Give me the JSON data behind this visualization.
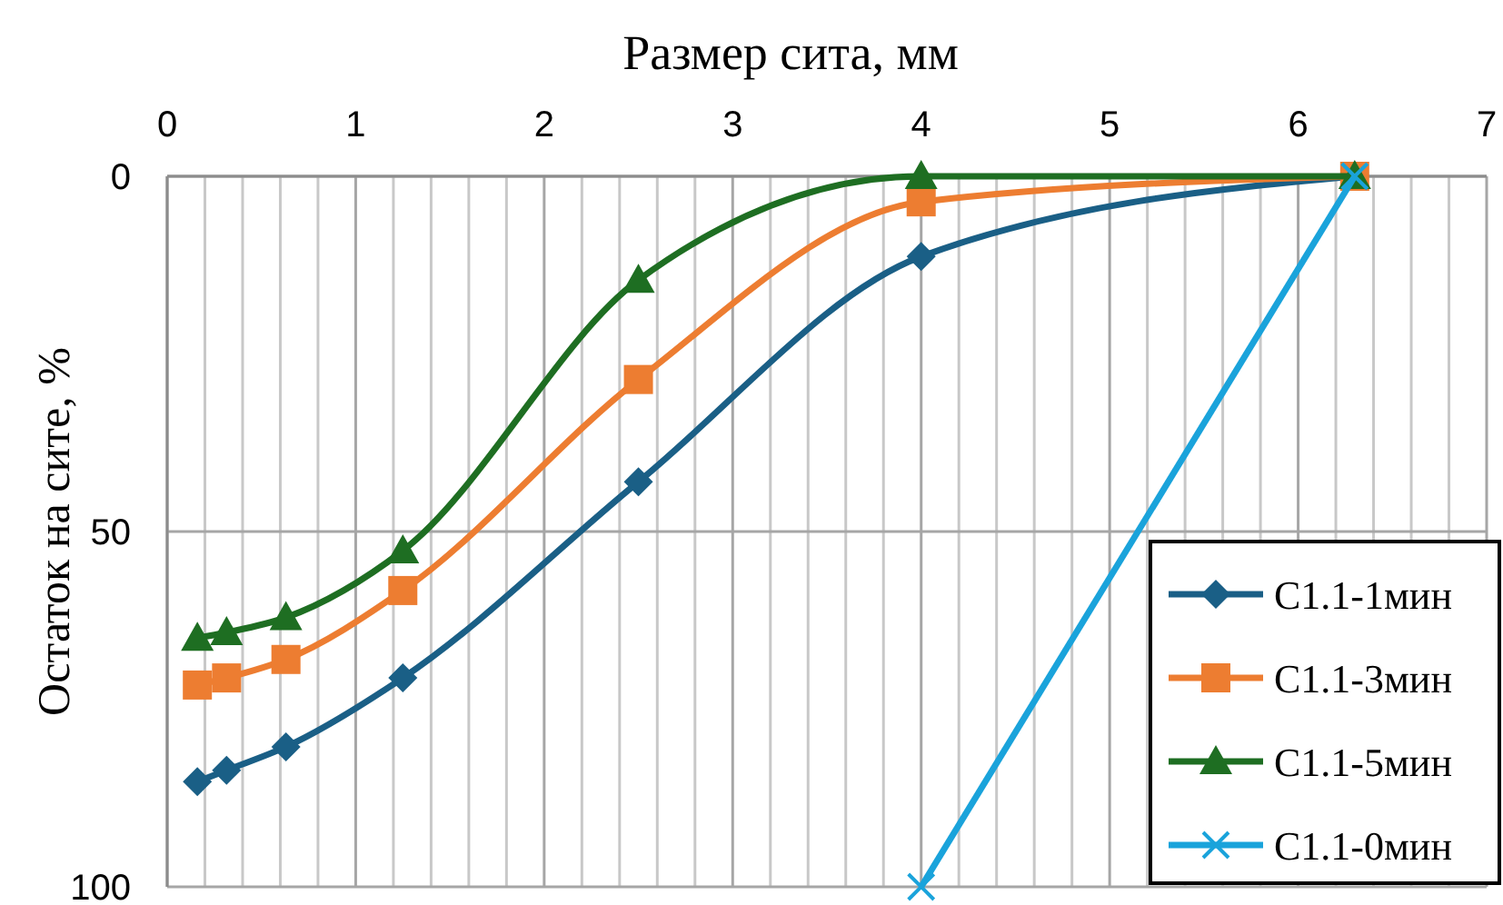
{
  "chart_data": {
    "type": "line",
    "xlabel": "Размер сита, мм",
    "ylabel": "Остаток на сите, %",
    "x": [
      0.16,
      0.315,
      0.63,
      1.25,
      2.5,
      4,
      6.3
    ],
    "series": [
      {
        "name": "C1.1-1мин",
        "color": "#1a5f86",
        "marker": "diamond",
        "values": [
          85.2,
          83.6,
          80.3,
          70.6,
          43,
          11.3,
          0
        ]
      },
      {
        "name": "C1.1-3мин",
        "color": "#ed7d31",
        "marker": "square",
        "values": [
          71.6,
          70.6,
          68,
          58.3,
          28.6,
          3.6,
          0
        ]
      },
      {
        "name": "C1.1-5мин",
        "color": "#1e6e22",
        "marker": "triangle",
        "values": [
          65,
          64.2,
          62.1,
          52.7,
          14.6,
          0,
          0
        ]
      },
      {
        "name": "C1.1-0мин",
        "color": "#1aa3db",
        "marker": "cross",
        "x": [
          4,
          6.3
        ],
        "values": [
          100,
          0
        ]
      }
    ],
    "xlim": [
      0,
      7
    ],
    "xticks": [
      0,
      1,
      2,
      3,
      4,
      5,
      6,
      7
    ],
    "ylim": [
      100,
      0
    ],
    "yticks": [
      0,
      50,
      100
    ],
    "grid": true,
    "legend": "bottom right"
  }
}
